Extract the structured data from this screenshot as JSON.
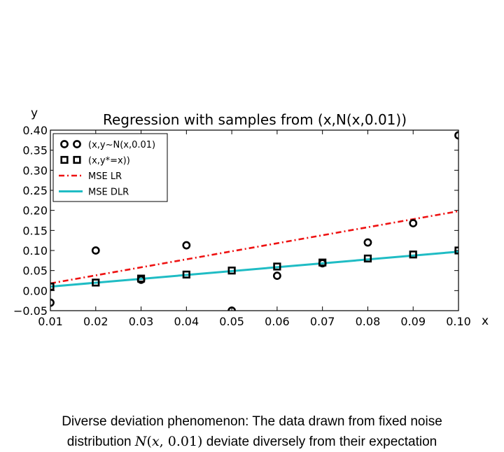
{
  "chart_data": {
    "type": "scatter",
    "title": "Regression with samples from (x,N(x,0.01))",
    "xlabel": "x",
    "ylabel": "y",
    "xlim": [
      0.01,
      0.1
    ],
    "ylim": [
      -0.05,
      0.4
    ],
    "x_ticks": [
      "0.01",
      "0.02",
      "0.03",
      "0.04",
      "0.05",
      "0.06",
      "0.07",
      "0.08",
      "0.09",
      "0.10"
    ],
    "y_ticks": [
      "0.40",
      "0.35",
      "0.30",
      "0.25",
      "0.20",
      "0.15",
      "0.10",
      "0.05",
      "0.00",
      "−0.05"
    ],
    "grid": false,
    "legend_position": "top-left",
    "series": [
      {
        "name": "(x,y~N(x,0.01)",
        "kind": "scatter",
        "marker": "circle",
        "color": "#000000",
        "x": [
          0.01,
          0.02,
          0.03,
          0.04,
          0.05,
          0.06,
          0.07,
          0.08,
          0.09,
          0.1
        ],
        "y": [
          -0.03,
          0.1,
          0.027,
          0.113,
          -0.05,
          0.037,
          0.068,
          0.12,
          0.168,
          0.387
        ]
      },
      {
        "name": "(x,y*=x))",
        "kind": "scatter",
        "marker": "square",
        "color": "#000000",
        "x": [
          0.01,
          0.02,
          0.03,
          0.04,
          0.05,
          0.06,
          0.07,
          0.08,
          0.09,
          0.1
        ],
        "y": [
          0.01,
          0.02,
          0.03,
          0.04,
          0.05,
          0.06,
          0.07,
          0.08,
          0.09,
          0.1
        ]
      },
      {
        "name": "MSE LR",
        "kind": "line",
        "style": "dashdot",
        "color": "#ee1111",
        "x": [
          0.01,
          0.1
        ],
        "y": [
          0.018,
          0.198
        ]
      },
      {
        "name": "MSE DLR",
        "kind": "line",
        "style": "solid",
        "color": "#1fbcc4",
        "x": [
          0.01,
          0.1
        ],
        "y": [
          0.01,
          0.097
        ]
      }
    ]
  },
  "caption": {
    "line1": "Diverse deviation phenomenon: The data drawn from fixed noise",
    "line2_prefix": "distribution",
    "line2_math_italic": "N",
    "line2_math_open": "(",
    "line2_math_x": "x",
    "line2_math_rest": ", 0.01)",
    "line2_suffix": "deviate diversely from their expectation"
  }
}
